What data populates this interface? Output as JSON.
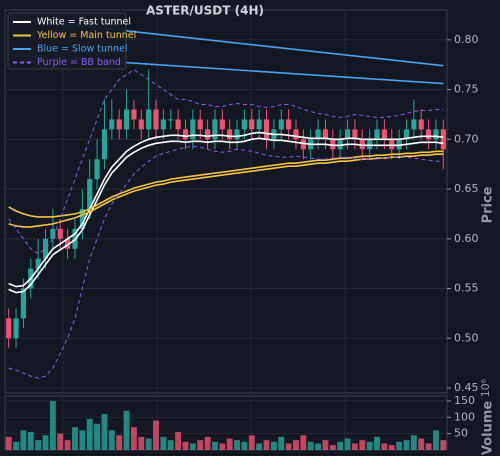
{
  "chart_data": {
    "type": "candlestick",
    "title": "ASTER/USDT (4H)",
    "ylabel": "Price",
    "up_color": "#26a69a",
    "down_color": "#ef5370",
    "grid": true,
    "legend": "upper left",
    "open": [
      0.52,
      0.5,
      0.52,
      0.55,
      0.57,
      0.58,
      0.6,
      0.61,
      0.6,
      0.59,
      0.61,
      0.63,
      0.66,
      0.68,
      0.71,
      0.72,
      0.71,
      0.73,
      0.72,
      0.71,
      0.73,
      0.71,
      0.72,
      0.72,
      0.71,
      0.7,
      0.72,
      0.71,
      0.7,
      0.72,
      0.71,
      0.7,
      0.71,
      0.72,
      0.71,
      0.72,
      0.7,
      0.71,
      0.72,
      0.71,
      0.7,
      0.69,
      0.7,
      0.71,
      0.7,
      0.69,
      0.7,
      0.71,
      0.7,
      0.69,
      0.7,
      0.71,
      0.7,
      0.69,
      0.7,
      0.71,
      0.72,
      0.71,
      0.7,
      0.71
    ],
    "high": [
      0.53,
      0.53,
      0.56,
      0.58,
      0.6,
      0.61,
      0.63,
      0.62,
      0.61,
      0.62,
      0.65,
      0.68,
      0.7,
      0.74,
      0.74,
      0.73,
      0.75,
      0.74,
      0.73,
      0.77,
      0.74,
      0.73,
      0.73,
      0.73,
      0.72,
      0.73,
      0.73,
      0.72,
      0.73,
      0.73,
      0.72,
      0.72,
      0.73,
      0.73,
      0.73,
      0.73,
      0.72,
      0.73,
      0.73,
      0.72,
      0.71,
      0.71,
      0.72,
      0.72,
      0.71,
      0.71,
      0.72,
      0.72,
      0.71,
      0.71,
      0.72,
      0.72,
      0.71,
      0.71,
      0.72,
      0.74,
      0.73,
      0.72,
      0.72,
      0.72
    ],
    "low": [
      0.49,
      0.49,
      0.51,
      0.54,
      0.56,
      0.57,
      0.59,
      0.59,
      0.58,
      0.58,
      0.6,
      0.62,
      0.65,
      0.67,
      0.7,
      0.7,
      0.7,
      0.71,
      0.7,
      0.7,
      0.7,
      0.7,
      0.71,
      0.7,
      0.69,
      0.69,
      0.7,
      0.69,
      0.69,
      0.7,
      0.69,
      0.69,
      0.7,
      0.7,
      0.7,
      0.69,
      0.69,
      0.7,
      0.7,
      0.69,
      0.68,
      0.68,
      0.69,
      0.69,
      0.68,
      0.68,
      0.69,
      0.69,
      0.68,
      0.68,
      0.69,
      0.69,
      0.68,
      0.68,
      0.69,
      0.7,
      0.7,
      0.69,
      0.69,
      0.67
    ],
    "close": [
      0.5,
      0.52,
      0.55,
      0.57,
      0.58,
      0.6,
      0.61,
      0.6,
      0.59,
      0.61,
      0.63,
      0.66,
      0.68,
      0.71,
      0.72,
      0.71,
      0.73,
      0.72,
      0.71,
      0.73,
      0.71,
      0.72,
      0.72,
      0.71,
      0.7,
      0.72,
      0.71,
      0.7,
      0.72,
      0.71,
      0.7,
      0.71,
      0.72,
      0.71,
      0.72,
      0.7,
      0.71,
      0.72,
      0.71,
      0.7,
      0.69,
      0.7,
      0.71,
      0.7,
      0.69,
      0.7,
      0.71,
      0.7,
      0.69,
      0.7,
      0.71,
      0.7,
      0.69,
      0.7,
      0.71,
      0.72,
      0.71,
      0.7,
      0.71,
      0.69
    ],
    "series": [
      {
        "name": "White = Fast tunnel",
        "color": "#ffffff",
        "dashed": false,
        "values": [
          0.555,
          0.552,
          0.553,
          0.56,
          0.57,
          0.58,
          0.59,
          0.595,
          0.6,
          0.605,
          0.615,
          0.63,
          0.645,
          0.66,
          0.672,
          0.68,
          0.688,
          0.693,
          0.697,
          0.7,
          0.702,
          0.703,
          0.704,
          0.704,
          0.703,
          0.704,
          0.704,
          0.703,
          0.704,
          0.704,
          0.703,
          0.703,
          0.704,
          0.706,
          0.707,
          0.706,
          0.705,
          0.705,
          0.704,
          0.703,
          0.702,
          0.701,
          0.701,
          0.701,
          0.7,
          0.7,
          0.701,
          0.701,
          0.7,
          0.7,
          0.7,
          0.7,
          0.7,
          0.7,
          0.701,
          0.702,
          0.703,
          0.703,
          0.703,
          0.702
        ],
        "lower": [
          0.549,
          0.546,
          0.547,
          0.554,
          0.564,
          0.574,
          0.584,
          0.589,
          0.594,
          0.599,
          0.609,
          0.624,
          0.639,
          0.654,
          0.666,
          0.674,
          0.682,
          0.687,
          0.691,
          0.694,
          0.696,
          0.697,
          0.698,
          0.698,
          0.697,
          0.698,
          0.698,
          0.697,
          0.698,
          0.698,
          0.697,
          0.697,
          0.698,
          0.7,
          0.701,
          0.7,
          0.699,
          0.699,
          0.698,
          0.697,
          0.696,
          0.695,
          0.695,
          0.695,
          0.694,
          0.694,
          0.695,
          0.695,
          0.694,
          0.694,
          0.694,
          0.694,
          0.694,
          0.694,
          0.695,
          0.696,
          0.697,
          0.697,
          0.697,
          0.696
        ]
      },
      {
        "name": "Yellow = Main tunnel",
        "color": "#f5c542",
        "dashed": false,
        "values": [
          0.632,
          0.628,
          0.625,
          0.623,
          0.622,
          0.622,
          0.622,
          0.623,
          0.624,
          0.625,
          0.627,
          0.63,
          0.634,
          0.638,
          0.642,
          0.645,
          0.648,
          0.651,
          0.653,
          0.655,
          0.657,
          0.658,
          0.66,
          0.661,
          0.662,
          0.663,
          0.664,
          0.665,
          0.666,
          0.667,
          0.668,
          0.669,
          0.67,
          0.671,
          0.672,
          0.673,
          0.674,
          0.675,
          0.676,
          0.676,
          0.677,
          0.678,
          0.679,
          0.679,
          0.68,
          0.681,
          0.681,
          0.682,
          0.683,
          0.683,
          0.684,
          0.684,
          0.685,
          0.685,
          0.686,
          0.686,
          0.687,
          0.687,
          0.688,
          0.688
        ],
        "lower": [
          0.615,
          0.613,
          0.612,
          0.612,
          0.613,
          0.614,
          0.615,
          0.617,
          0.619,
          0.621,
          0.624,
          0.627,
          0.631,
          0.635,
          0.639,
          0.642,
          0.645,
          0.648,
          0.65,
          0.652,
          0.654,
          0.655,
          0.657,
          0.658,
          0.659,
          0.66,
          0.661,
          0.662,
          0.663,
          0.664,
          0.665,
          0.666,
          0.667,
          0.668,
          0.669,
          0.67,
          0.671,
          0.672,
          0.673,
          0.673,
          0.674,
          0.675,
          0.676,
          0.676,
          0.677,
          0.678,
          0.678,
          0.679,
          0.68,
          0.68,
          0.681,
          0.681,
          0.682,
          0.682,
          0.683,
          0.683,
          0.684,
          0.684,
          0.685,
          0.685
        ]
      },
      {
        "name": "Blue = Slow tunnel",
        "color": "#4aa3f0",
        "dashed": false,
        "x": [
          0,
          59
        ],
        "values": [
          0.822,
          0.774
        ],
        "lower": [
          0.785,
          0.756
        ]
      },
      {
        "name": "Purple = BB band",
        "color": "#8a5cf0",
        "dashed": true,
        "values": [
          0.62,
          0.61,
          0.6,
          0.59,
          0.585,
          0.59,
          0.6,
          0.62,
          0.64,
          0.66,
          0.68,
          0.7,
          0.72,
          0.74,
          0.75,
          0.76,
          0.765,
          0.77,
          0.765,
          0.76,
          0.755,
          0.75,
          0.745,
          0.74,
          0.74,
          0.738,
          0.735,
          0.735,
          0.733,
          0.733,
          0.735,
          0.736,
          0.735,
          0.735,
          0.733,
          0.732,
          0.733,
          0.735,
          0.735,
          0.733,
          0.73,
          0.728,
          0.726,
          0.725,
          0.723,
          0.722,
          0.723,
          0.725,
          0.724,
          0.723,
          0.722,
          0.722,
          0.723,
          0.724,
          0.726,
          0.728,
          0.729,
          0.729,
          0.73,
          0.73
        ],
        "lower": [
          0.47,
          0.468,
          0.465,
          0.462,
          0.46,
          0.462,
          0.47,
          0.485,
          0.5,
          0.52,
          0.55,
          0.58,
          0.6,
          0.62,
          0.635,
          0.645,
          0.655,
          0.665,
          0.672,
          0.678,
          0.683,
          0.686,
          0.688,
          0.69,
          0.692,
          0.693,
          0.692,
          0.69,
          0.688,
          0.687,
          0.688,
          0.69,
          0.689,
          0.688,
          0.686,
          0.684,
          0.683,
          0.682,
          0.682,
          0.683,
          0.682,
          0.681,
          0.68,
          0.68,
          0.681,
          0.682,
          0.682,
          0.681,
          0.68,
          0.68,
          0.68,
          0.681,
          0.682,
          0.682,
          0.682,
          0.681,
          0.68,
          0.679,
          0.678,
          0.678
        ]
      }
    ],
    "ylim": [
      0.445,
      0.83
    ],
    "yticks": [
      {
        "value": 0.45,
        "label": "0.45"
      },
      {
        "value": 0.5,
        "label": "0.50"
      },
      {
        "value": 0.55,
        "label": "0.55"
      },
      {
        "value": 0.6,
        "label": "0.60"
      },
      {
        "value": 0.65,
        "label": "0.65"
      },
      {
        "value": 0.7,
        "label": "0.70"
      },
      {
        "value": 0.75,
        "label": "0.75"
      },
      {
        "value": 0.8,
        "label": "0.80"
      }
    ],
    "volume": {
      "label": "Volume",
      "offset_label": "10⁶",
      "ylim": [
        0,
        165
      ],
      "yticks": [
        50,
        100,
        150
      ],
      "values": [
        40,
        25,
        60,
        55,
        30,
        45,
        150,
        50,
        30,
        70,
        60,
        95,
        80,
        110,
        60,
        45,
        120,
        70,
        40,
        35,
        90,
        40,
        30,
        55,
        25,
        20,
        30,
        40,
        25,
        20,
        35,
        30,
        25,
        45,
        20,
        30,
        25,
        40,
        20,
        30,
        45,
        25,
        20,
        30,
        15,
        25,
        35,
        20,
        30,
        25,
        40,
        20,
        15,
        25,
        30,
        45,
        35,
        20,
        60,
        30
      ]
    }
  }
}
